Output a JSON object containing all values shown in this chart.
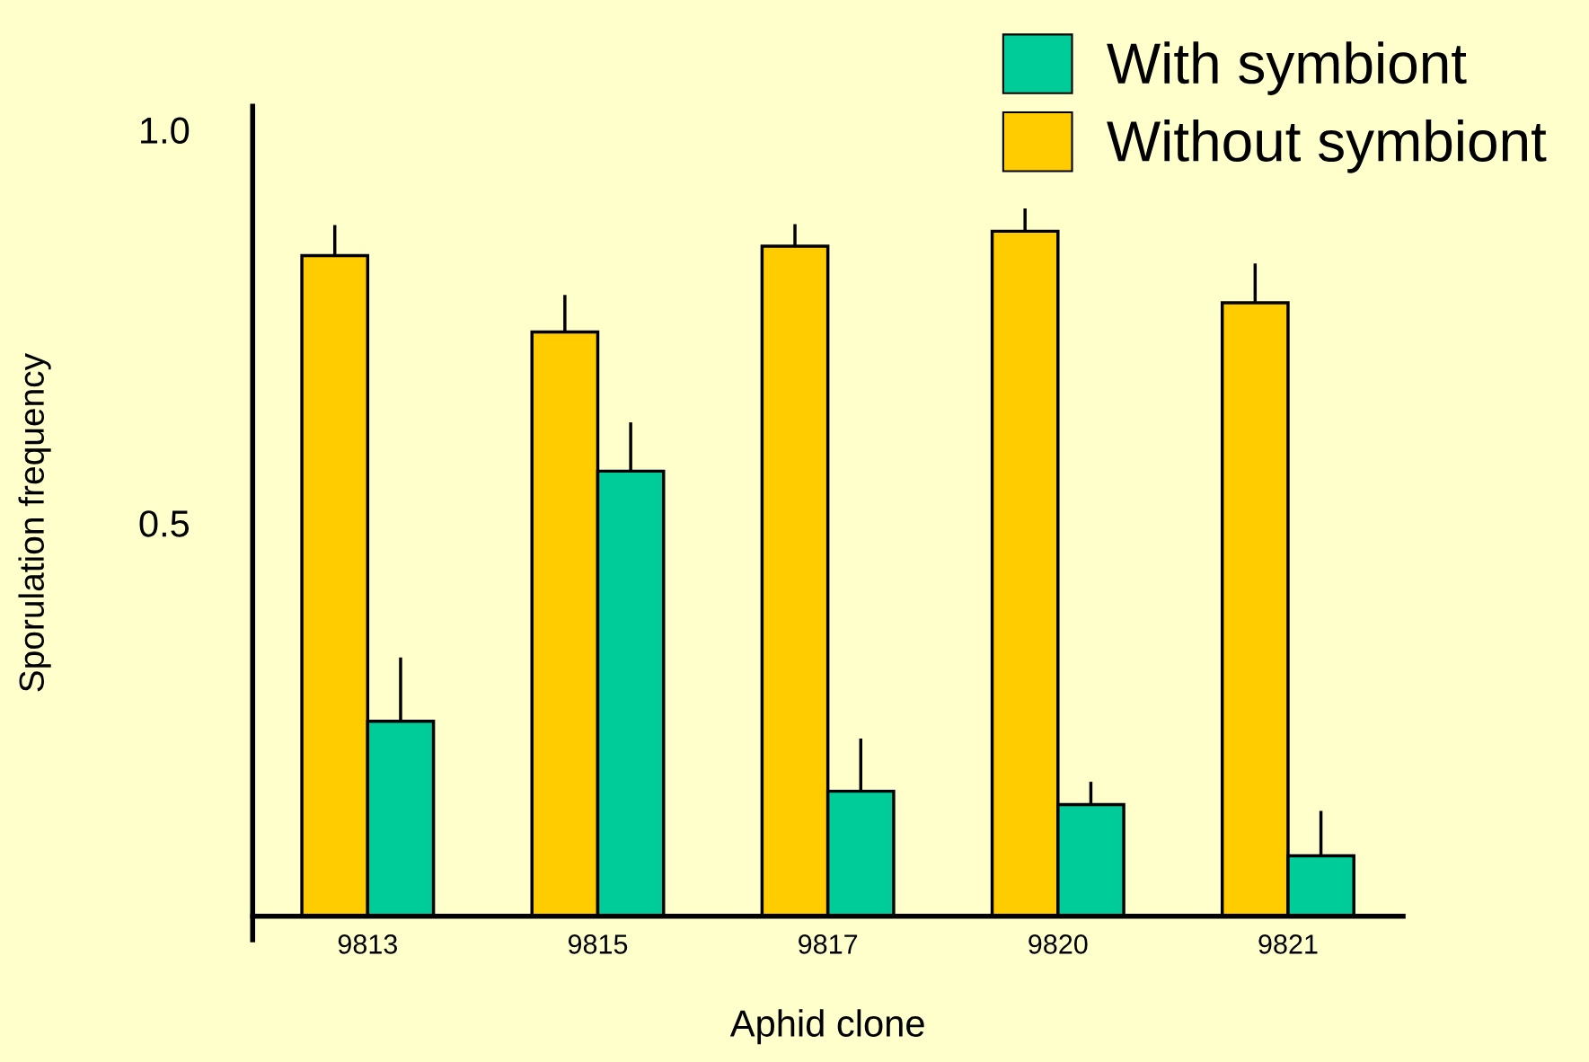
{
  "chart_data": {
    "type": "bar",
    "xlabel": "Aphid clone",
    "ylabel": "Sporulation frequency",
    "categories": [
      "9813",
      "9815",
      "9817",
      "9820",
      "9821"
    ],
    "series": [
      {
        "name": "Without symbiont",
        "color": "#ffcc00",
        "values": [
          0.84,
          0.743,
          0.852,
          0.871,
          0.78
        ],
        "errors": [
          [
            0.84,
            0.879
          ],
          [
            0.743,
            0.79
          ],
          [
            0.852,
            0.88
          ],
          [
            0.871,
            0.9
          ],
          [
            0.78,
            0.83
          ]
        ]
      },
      {
        "name": "With symbiont",
        "color": "#00cc99",
        "values": [
          0.248,
          0.566,
          0.159,
          0.142,
          0.077
        ],
        "errors": [
          [
            0.248,
            0.329
          ],
          [
            0.566,
            0.628
          ],
          [
            0.159,
            0.226
          ],
          [
            0.142,
            0.171
          ],
          [
            0.077,
            0.134
          ]
        ]
      }
    ],
    "ylim": [
      -0.03,
      1.03
    ],
    "yticks": [
      0.5,
      {
        "value": 1.0,
        "label": "1.0"
      }
    ],
    "grid": false,
    "legend": "top right"
  }
}
